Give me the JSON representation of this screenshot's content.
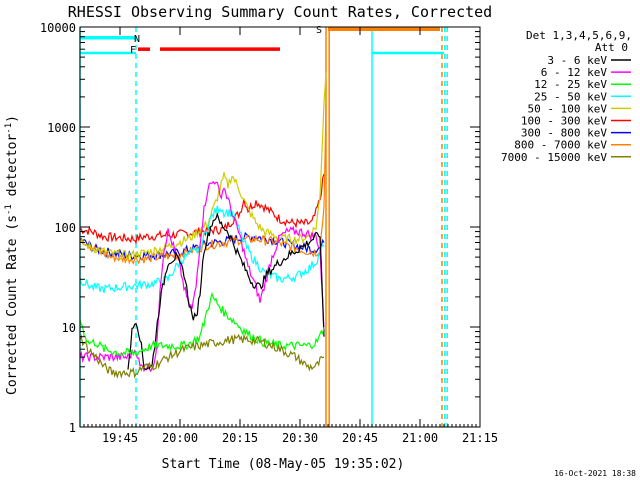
{
  "chart_data": {
    "type": "line",
    "title": "RHESSI Observing Summary Count Rates, Corrected",
    "xlabel": "Start Time (08-May-05 19:35:02)",
    "ylabel_main": "Corrected Count Rate (s",
    "ylabel_exp1": "-1",
    "ylabel_mid": " detector",
    "ylabel_exp2": "-1",
    "ylabel_end": ")",
    "yscale": "log",
    "ylim": [
      1,
      10000
    ],
    "xlim_minutes": [
      0,
      100
    ],
    "x_ticks": [
      {
        "label": "19:45",
        "minute": 10
      },
      {
        "label": "20:00",
        "minute": 25
      },
      {
        "label": "20:15",
        "minute": 40
      },
      {
        "label": "20:30",
        "minute": 55
      },
      {
        "label": "20:45",
        "minute": 70
      },
      {
        "label": "21:00",
        "minute": 85
      },
      {
        "label": "21:15",
        "minute": 100
      }
    ],
    "y_ticks": [
      {
        "label": "1",
        "value": 1
      },
      {
        "label": "10",
        "value": 10
      },
      {
        "label": "100",
        "value": 100
      },
      {
        "label": "1000",
        "value": 1000
      },
      {
        "label": "10000",
        "value": 10000
      }
    ],
    "legend": {
      "position": "right",
      "header_line1": "Det 1,3,4,5,6,9,",
      "header_line2": "Att 0",
      "entries": [
        {
          "label": "3 - 6 keV",
          "color": "#000000"
        },
        {
          "label": "6 - 12 keV",
          "color": "#ff00ff"
        },
        {
          "label": "12 - 25 keV",
          "color": "#00ff00"
        },
        {
          "label": "25 - 50 keV",
          "color": "#00ffff"
        },
        {
          "label": "50 - 100 keV",
          "color": "#cccc00"
        },
        {
          "label": "100 - 300 keV",
          "color": "#ff0000"
        },
        {
          "label": "300 - 800 keV",
          "color": "#0000ff"
        },
        {
          "label": "800 - 7000 keV",
          "color": "#ff8000"
        },
        {
          "label": "7000 - 15000 keV",
          "color": "#808000"
        }
      ]
    },
    "series": [
      {
        "color": "#ff0000",
        "points": [
          [
            0,
            95
          ],
          [
            3,
            90
          ],
          [
            6,
            80
          ],
          [
            10,
            78
          ],
          [
            14,
            76
          ],
          [
            16,
            80
          ],
          [
            20,
            82
          ],
          [
            24,
            84
          ],
          [
            28,
            88
          ],
          [
            32,
            92
          ],
          [
            36,
            95
          ],
          [
            40,
            140
          ],
          [
            41,
            190
          ],
          [
            42,
            150
          ],
          [
            44,
            180
          ],
          [
            46,
            160
          ],
          [
            50,
            120
          ],
          [
            53,
            110
          ],
          [
            56,
            108
          ],
          [
            58,
            110
          ],
          [
            59,
            140
          ],
          [
            60,
            190
          ],
          [
            61,
            340
          ]
        ]
      },
      {
        "color": "#0000ff",
        "points": [
          [
            0,
            75
          ],
          [
            4,
            60
          ],
          [
            8,
            55
          ],
          [
            12,
            52
          ],
          [
            16,
            52
          ],
          [
            20,
            53
          ],
          [
            24,
            55
          ],
          [
            28,
            60
          ],
          [
            32,
            68
          ],
          [
            36,
            72
          ],
          [
            40,
            78
          ],
          [
            44,
            80
          ],
          [
            48,
            75
          ],
          [
            52,
            68
          ],
          [
            56,
            62
          ],
          [
            58,
            60
          ],
          [
            60,
            62
          ],
          [
            61,
            70
          ]
        ]
      },
      {
        "color": "#ff8000",
        "points": [
          [
            0,
            78
          ],
          [
            4,
            58
          ],
          [
            8,
            50
          ],
          [
            12,
            48
          ],
          [
            16,
            48
          ],
          [
            20,
            50
          ],
          [
            24,
            52
          ],
          [
            28,
            58
          ],
          [
            32,
            66
          ],
          [
            36,
            70
          ],
          [
            40,
            74
          ],
          [
            44,
            76
          ],
          [
            48,
            72
          ],
          [
            52,
            65
          ],
          [
            56,
            58
          ],
          [
            59,
            55
          ],
          [
            60,
            60
          ],
          [
            61,
            160
          ],
          [
            61.5,
            1700
          ]
        ]
      },
      {
        "color": "#cccc00",
        "points": [
          [
            0,
            70
          ],
          [
            4,
            60
          ],
          [
            8,
            54
          ],
          [
            12,
            52
          ],
          [
            16,
            55
          ],
          [
            20,
            60
          ],
          [
            24,
            68
          ],
          [
            28,
            80
          ],
          [
            32,
            110
          ],
          [
            34,
            180
          ],
          [
            36,
            320
          ],
          [
            37,
            260
          ],
          [
            38,
            330
          ],
          [
            40,
            230
          ],
          [
            42,
            150
          ],
          [
            44,
            110
          ],
          [
            46,
            90
          ],
          [
            50,
            78
          ],
          [
            54,
            75
          ],
          [
            57,
            80
          ],
          [
            59,
            100
          ],
          [
            60,
            200
          ],
          [
            61,
            1800
          ],
          [
            61.5,
            3500
          ]
        ]
      },
      {
        "color": "#00ffff",
        "points": [
          [
            0,
            30
          ],
          [
            3,
            25
          ],
          [
            6,
            24
          ],
          [
            10,
            25
          ],
          [
            14,
            26
          ],
          [
            18,
            27
          ],
          [
            22,
            30
          ],
          [
            24,
            40
          ],
          [
            26,
            50
          ],
          [
            28,
            55
          ],
          [
            30,
            60
          ],
          [
            31,
            80
          ],
          [
            33,
            130
          ],
          [
            35,
            160
          ],
          [
            36,
            140
          ],
          [
            38,
            140
          ],
          [
            39,
            110
          ],
          [
            41,
            70
          ],
          [
            43,
            50
          ],
          [
            46,
            35
          ],
          [
            50,
            30
          ],
          [
            54,
            32
          ],
          [
            57,
            38
          ],
          [
            59,
            45
          ],
          [
            60,
            55
          ],
          [
            61,
            65
          ]
        ]
      },
      {
        "color": "#ff00ff",
        "points": [
          [
            0,
            5
          ],
          [
            12,
            5
          ],
          [
            14,
            6
          ],
          [
            15,
            4
          ],
          [
            18,
            4
          ],
          [
            19,
            5
          ],
          [
            20,
            25
          ],
          [
            21,
            60
          ],
          [
            22,
            90
          ],
          [
            23,
            70
          ],
          [
            25,
            40
          ],
          [
            26,
            25
          ],
          [
            27,
            18
          ],
          [
            28,
            15
          ],
          [
            29,
            25
          ],
          [
            30,
            70
          ],
          [
            31,
            150
          ],
          [
            32,
            250
          ],
          [
            34,
            300
          ],
          [
            35,
            200
          ],
          [
            36,
            250
          ],
          [
            38,
            140
          ],
          [
            40,
            80
          ],
          [
            42,
            40
          ],
          [
            44,
            25
          ],
          [
            45,
            18
          ],
          [
            46,
            25
          ],
          [
            48,
            50
          ],
          [
            50,
            80
          ],
          [
            52,
            90
          ],
          [
            55,
            90
          ],
          [
            57,
            85
          ],
          [
            59,
            80
          ],
          [
            60,
            60
          ],
          [
            61,
            9
          ]
        ]
      },
      {
        "color": "#000000",
        "points": [
          [
            12,
            4
          ],
          [
            13,
            9
          ],
          [
            14,
            12
          ],
          [
            15,
            8
          ],
          [
            16,
            4
          ],
          [
            18,
            4
          ],
          [
            20,
            18
          ],
          [
            22,
            45
          ],
          [
            24,
            50
          ],
          [
            26,
            35
          ],
          [
            27,
            20
          ],
          [
            28,
            13
          ],
          [
            29,
            12
          ],
          [
            30,
            22
          ],
          [
            31,
            60
          ],
          [
            33,
            110
          ],
          [
            34,
            130
          ],
          [
            35,
            110
          ],
          [
            37,
            90
          ],
          [
            39,
            60
          ],
          [
            41,
            40
          ],
          [
            43,
            28
          ],
          [
            45,
            25
          ],
          [
            47,
            35
          ],
          [
            50,
            45
          ],
          [
            53,
            55
          ],
          [
            56,
            65
          ],
          [
            58,
            75
          ],
          [
            60,
            85
          ],
          [
            61,
            8
          ]
        ]
      },
      {
        "color": "#00ff00",
        "points": [
          [
            0,
            12
          ],
          [
            1,
            9
          ],
          [
            2,
            7
          ],
          [
            4,
            7
          ],
          [
            6,
            6
          ],
          [
            10,
            5.5
          ],
          [
            14,
            5.5
          ],
          [
            16,
            6
          ],
          [
            18,
            6.5
          ],
          [
            22,
            6.5
          ],
          [
            26,
            6.5
          ],
          [
            28,
            7
          ],
          [
            30,
            8
          ],
          [
            31,
            11
          ],
          [
            32,
            16
          ],
          [
            33,
            20
          ],
          [
            34,
            18
          ],
          [
            36,
            14
          ],
          [
            38,
            12
          ],
          [
            40,
            10
          ],
          [
            42,
            8.5
          ],
          [
            46,
            7
          ],
          [
            50,
            6.5
          ],
          [
            54,
            6.5
          ],
          [
            57,
            6.5
          ],
          [
            59,
            7
          ],
          [
            60,
            8
          ],
          [
            61,
            10
          ]
        ]
      },
      {
        "color": "#808000",
        "points": [
          [
            0,
            8
          ],
          [
            2,
            6
          ],
          [
            4,
            5
          ],
          [
            6,
            4
          ],
          [
            8,
            3.5
          ],
          [
            10,
            3.5
          ],
          [
            14,
            3.5
          ],
          [
            16,
            4
          ],
          [
            18,
            4
          ],
          [
            22,
            5
          ],
          [
            26,
            6
          ],
          [
            30,
            6.5
          ],
          [
            34,
            7
          ],
          [
            38,
            7.5
          ],
          [
            42,
            7.5
          ],
          [
            46,
            7
          ],
          [
            50,
            6
          ],
          [
            54,
            5
          ],
          [
            57,
            4
          ],
          [
            59,
            4
          ],
          [
            60,
            4.5
          ],
          [
            61,
            5
          ]
        ]
      }
    ],
    "flags": [
      {
        "label": "F",
        "color": "#ff0000",
        "segments": [
          [
            14.5,
            17.5
          ],
          [
            20,
            50
          ]
        ],
        "y_value": 6000,
        "label_x": 14
      },
      {
        "label": "N",
        "color": "#00ffff",
        "segments": [
          [
            0,
            14
          ]
        ],
        "y_value": 7800,
        "label_x": 15
      },
      {
        "label": "S",
        "color": "#ff8000",
        "segments": [
          [
            62,
            90
          ]
        ],
        "y_value": 9500,
        "label_x": 60.5
      }
    ],
    "night_bars": [
      {
        "color": "#00ffff",
        "segments": [
          [
            0,
            14
          ],
          [
            73,
            91
          ]
        ],
        "y_value": 5500
      }
    ],
    "vertical_lines": [
      {
        "color": "#00ffff",
        "minute": 0,
        "style": "solid"
      },
      {
        "color": "#00ffff",
        "minute": 14,
        "style": "dashed"
      },
      {
        "color": "#ff8000",
        "minute": 61.5,
        "style": "solid"
      },
      {
        "color": "#ff8000",
        "minute": 62.3,
        "style": "solid"
      },
      {
        "color": "#00ffff",
        "minute": 73,
        "style": "solid"
      },
      {
        "color": "#ff8000",
        "minute": 90.5,
        "style": "dashed"
      },
      {
        "color": "#00ffff",
        "minute": 91.2,
        "style": "dashed"
      },
      {
        "color": "#00ffff",
        "minute": 91.8,
        "style": "dashed"
      }
    ],
    "footer_timestamp": "16-Oct-2021 18:38"
  }
}
